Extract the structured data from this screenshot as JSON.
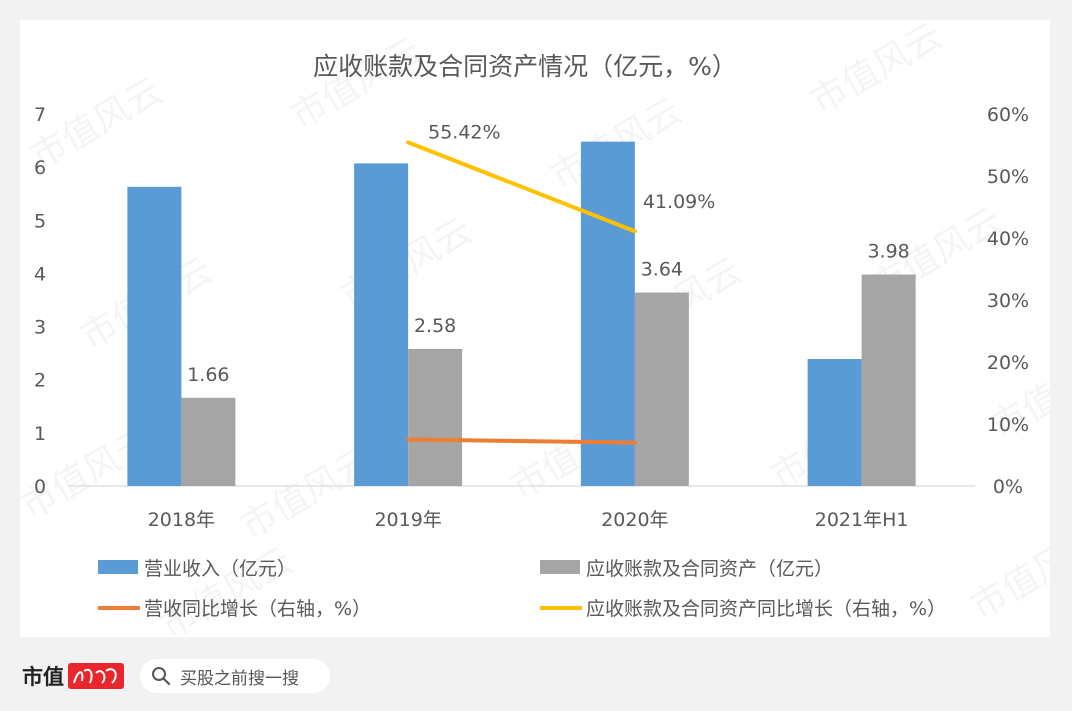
{
  "chart_data": {
    "type": "bar",
    "title": "应收账款及合同资产情况（亿元，%）",
    "categories": [
      "2018年",
      "2019年",
      "2020年",
      "2021年H1"
    ],
    "left_axis": {
      "range": [
        0,
        7
      ],
      "ticks": [
        "0",
        "1",
        "2",
        "3",
        "4",
        "5",
        "6",
        "7"
      ]
    },
    "right_axis": {
      "range": [
        0,
        60
      ],
      "ticks": [
        "0%",
        "10%",
        "20%",
        "30%",
        "40%",
        "50%",
        "60%"
      ]
    },
    "series": [
      {
        "name": "营业收入（亿元）",
        "kind": "bar",
        "axis": "left",
        "color": "#5b9bd5",
        "values": [
          5.63,
          6.07,
          6.48,
          2.39
        ]
      },
      {
        "name": "应收账款及合同资产（亿元）",
        "kind": "bar",
        "axis": "left",
        "color": "#a5a5a5",
        "values": [
          1.66,
          2.58,
          3.64,
          3.98
        ],
        "labels": [
          "1.66",
          "2.58",
          "3.64",
          "3.98"
        ]
      },
      {
        "name": "营收同比增长（右轴，%）",
        "kind": "line",
        "axis": "right",
        "color": "#ed7d31",
        "values": [
          null,
          7.5,
          7.0,
          null
        ]
      },
      {
        "name": "应收账款及合同资产同比增长（右轴，%）",
        "kind": "line",
        "axis": "right",
        "color": "#ffc000",
        "values": [
          null,
          55.42,
          41.09,
          null
        ],
        "labels": [
          null,
          "55.42%",
          "41.09%",
          null
        ]
      }
    ],
    "legend_position": "bottom",
    "grid": false
  },
  "watermark": "市值风云",
  "footer": {
    "brand": "市值",
    "search_placeholder": "买股之前搜一搜"
  },
  "colors": {
    "background": "#f2f2f2",
    "card": "#ffffff",
    "text": "#595959",
    "axis": "#d9d9d9",
    "brand_red": "#e8262b"
  }
}
